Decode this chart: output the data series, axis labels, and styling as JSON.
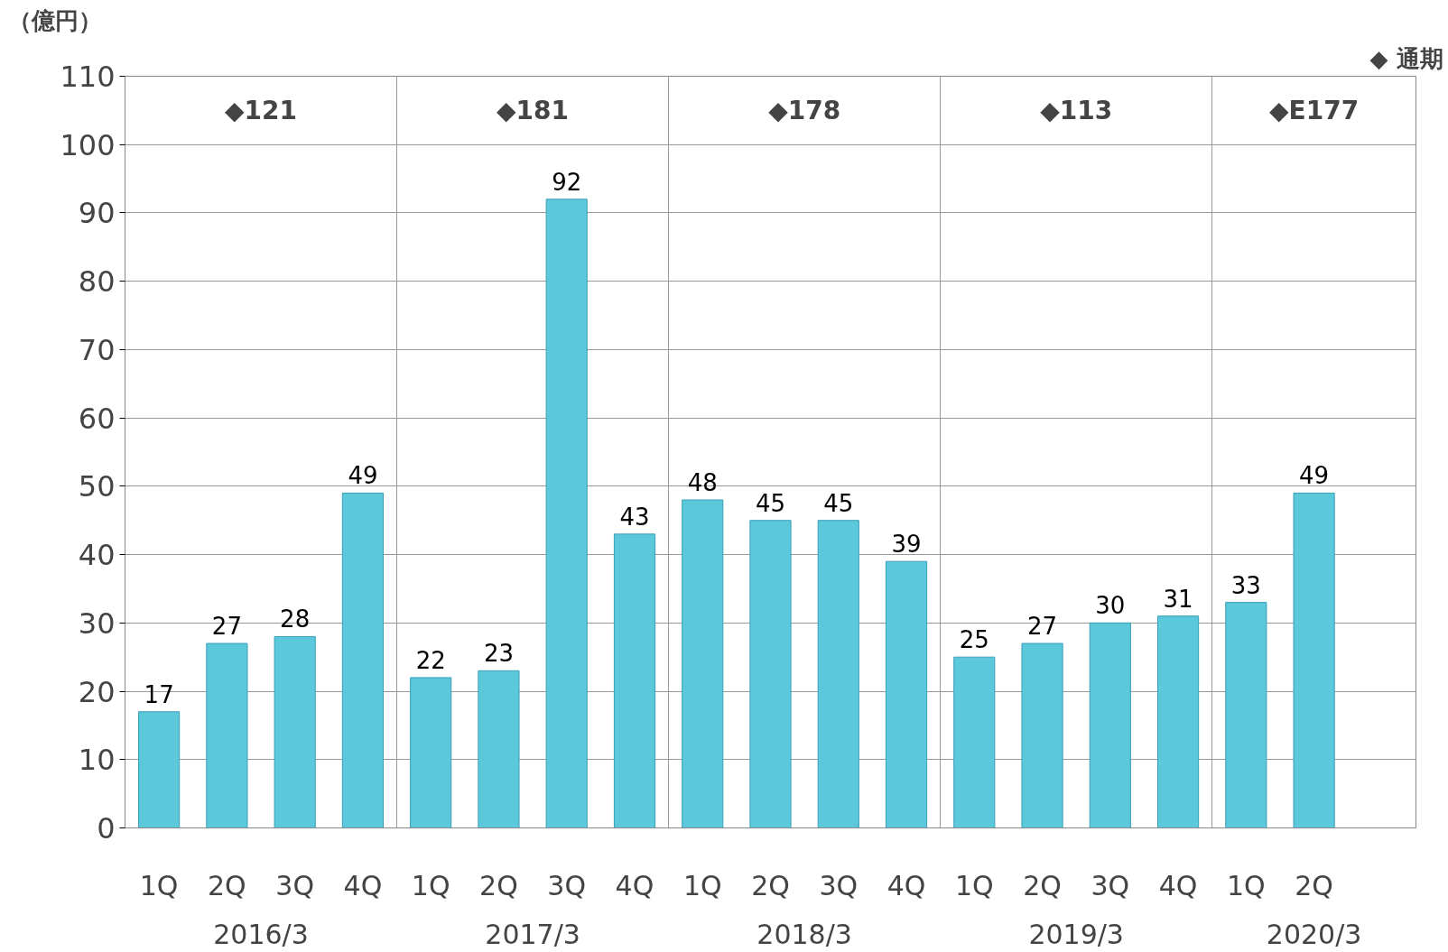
{
  "chart_data": {
    "type": "bar",
    "ylabel": "（億円）",
    "categories": [
      "1Q",
      "2Q",
      "3Q",
      "4Q",
      "1Q",
      "2Q",
      "3Q",
      "4Q",
      "1Q",
      "2Q",
      "3Q",
      "4Q",
      "1Q",
      "2Q",
      "3Q",
      "4Q",
      "1Q",
      "2Q",
      null
    ],
    "values": [
      17,
      27,
      28,
      49,
      22,
      23,
      92,
      43,
      48,
      45,
      45,
      39,
      25,
      27,
      30,
      31,
      33,
      49,
      null
    ],
    "color": "#5bc8dc",
    "ylim": [
      0,
      110
    ],
    "yticks": [
      0,
      10,
      20,
      30,
      40,
      50,
      60,
      70,
      80,
      90,
      100,
      110
    ],
    "grid": true,
    "data_labels": true,
    "annotations": [
      "2016/3",
      "2017/3",
      "2018/3",
      "2019/3",
      "2020/3",
      "◆121",
      "◆181",
      "◆178",
      "◆113",
      "◆E177",
      "◆ 通期"
    ]
  }
}
